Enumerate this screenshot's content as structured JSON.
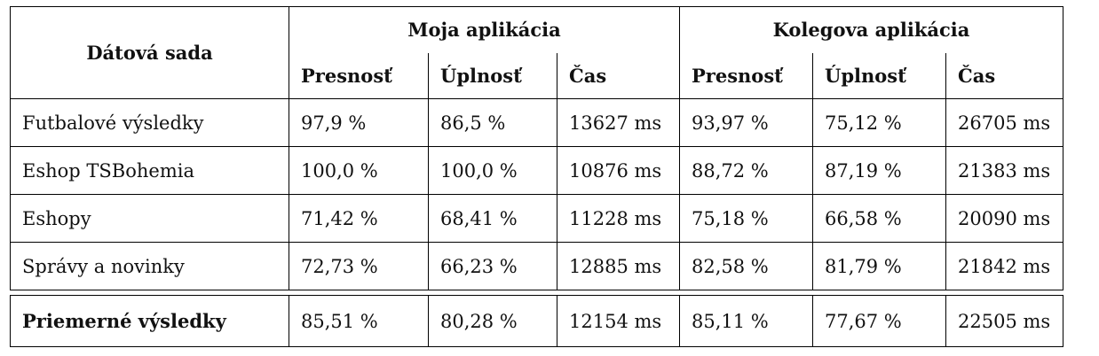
{
  "header": {
    "dataset_label": "Dátová sada",
    "group1": "Moja aplikácia",
    "group2": "Kolegova aplikácia",
    "columns": [
      "Presnosť",
      "Úplnosť",
      "Čas",
      "Presnosť",
      "Úplnosť",
      "Čas"
    ]
  },
  "rows": [
    {
      "name": "Futbalové výsledky",
      "values": [
        "97,9 %",
        "86,5 %",
        "13627 ms",
        "93,97 %",
        "75,12 %",
        "26705 ms"
      ]
    },
    {
      "name": "Eshop TSBohemia",
      "values": [
        "100,0 %",
        "100,0 %",
        "10876 ms",
        "88,72 %",
        "87,19 %",
        "21383 ms"
      ]
    },
    {
      "name": "Eshopy",
      "values": [
        "71,42 %",
        "68,41 %",
        "11228 ms",
        "75,18 %",
        "66,58 %",
        "20090 ms"
      ]
    },
    {
      "name": "Správy a novinky",
      "values": [
        "72,73 %",
        "66,23 %",
        "12885 ms",
        "82,58 %",
        "81,79 %",
        "21842 ms"
      ]
    }
  ],
  "average": {
    "name": "Priemerné výsledky",
    "values": [
      "85,51 %",
      "80,28 %",
      "12154 ms",
      "85,11 %",
      "77,67 %",
      "22505 ms"
    ]
  }
}
